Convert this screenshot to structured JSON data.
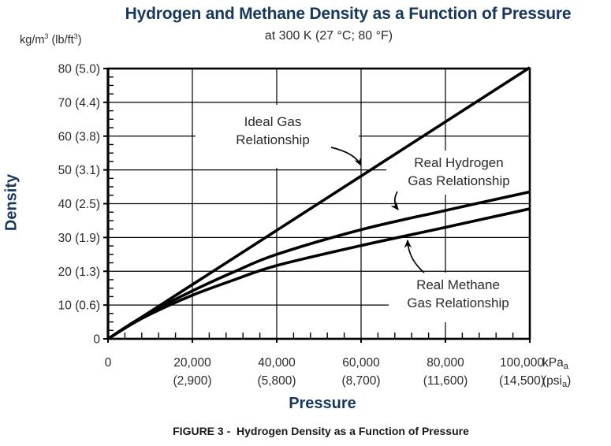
{
  "page": {
    "title": "Hydrogen and Methane Density as a Function of Pressure",
    "subtitle": "at 300 K (27 °C; 80 °F)",
    "y_unit_label": {
      "pre": "kg/m",
      "sup1": "3",
      "mid": " (lb/ft",
      "sup2": "3",
      "post": ")"
    },
    "caption": "FIGURE 3 -  Hydrogen Density as a Function of Pressure",
    "colors": {
      "heading": "#17375D",
      "body_text": "#2b2b2b",
      "line": "#000000",
      "grid": "#000000",
      "background": "#ffffff"
    }
  },
  "chart_data": {
    "type": "line",
    "title": "Hydrogen and Methane Density as a Function of Pressure",
    "subtitle": "at 300 K (27 °C; 80 °F)",
    "xlabel": "Pressure",
    "ylabel": "Density",
    "y_unit": "kg/m³ (lb/ft³)",
    "x_unit": {
      "main": "kPa",
      "sub": "a"
    },
    "x_unit_secondary": {
      "pre": "(psi",
      "sub": "a",
      "post": ")"
    },
    "grid": true,
    "legend": "inline-annotations",
    "x_axis": {
      "unit": "kPa(a)",
      "range": [
        0,
        100000
      ],
      "major_step": 20000,
      "minor_step": 4000,
      "tick_labels_kpa": [
        "0",
        "20,000",
        "40,000",
        "60,000",
        "80,000",
        "100,000"
      ],
      "tick_labels_psi": [
        "",
        "(2,900)",
        "(5,800)",
        "(8,700)",
        "(11,600)",
        "(14,500)"
      ]
    },
    "y_axis": {
      "unit": "kg/m³ (lb/ft³)",
      "range": [
        0,
        80
      ],
      "major_step": 10,
      "minor_step": 2.5,
      "tick_labels": [
        "0",
        "10 (0.6)",
        "20 (1.3)",
        "30 (1.9)",
        "40 (2.5)",
        "50 (3.1)",
        "60 (3.8)",
        "70 (4.4)",
        "80 (5.0)"
      ]
    },
    "series": [
      {
        "name": "Ideal Gas Relationship",
        "points": [
          [
            0,
            0
          ],
          [
            100000,
            80.3
          ]
        ]
      },
      {
        "name": "Real Hydrogen Gas Relationship",
        "points": [
          [
            0,
            0
          ],
          [
            5000,
            4.1
          ],
          [
            10000,
            7.8
          ],
          [
            20000,
            14.2
          ],
          [
            30000,
            19.9
          ],
          [
            40000,
            25.0
          ],
          [
            60000,
            32.3
          ],
          [
            80000,
            38.0
          ],
          [
            100000,
            43.5
          ]
        ]
      },
      {
        "name": "Real Methane Gas Relationship",
        "points": [
          [
            0,
            0
          ],
          [
            5000,
            3.9
          ],
          [
            10000,
            7.3
          ],
          [
            20000,
            12.9
          ],
          [
            30000,
            17.5
          ],
          [
            40000,
            21.7
          ],
          [
            60000,
            27.6
          ],
          [
            80000,
            33.0
          ],
          [
            100000,
            38.5
          ]
        ]
      }
    ],
    "annotations": [
      {
        "id": "ideal",
        "lines": [
          "Ideal Gas",
          "Relationship"
        ]
      },
      {
        "id": "hydrogen",
        "lines": [
          "Real Hydrogen",
          "Gas Relationship"
        ]
      },
      {
        "id": "methane",
        "lines": [
          "Real Methane",
          "Gas Relationship"
        ]
      }
    ]
  }
}
